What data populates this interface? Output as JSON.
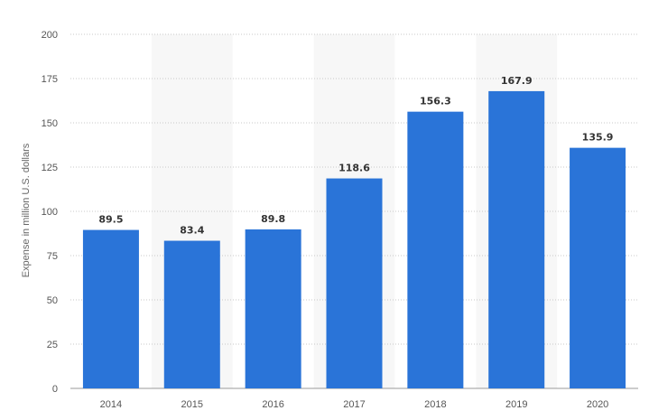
{
  "chart_data": {
    "type": "bar",
    "categories": [
      "2014",
      "2015",
      "2016",
      "2017",
      "2018",
      "2019",
      "2020"
    ],
    "values": [
      89.5,
      83.4,
      89.8,
      118.6,
      156.3,
      167.9,
      135.9
    ],
    "data_labels": [
      "89.5",
      "83.4",
      "89.8",
      "118.6",
      "156.3",
      "167.9",
      "135.9"
    ],
    "title": "",
    "xlabel": "",
    "ylabel": "Expense in million U.S. dollars",
    "ylim": [
      0,
      200
    ],
    "yticks": [
      0,
      25,
      50,
      75,
      100,
      125,
      150,
      175,
      200
    ],
    "ytick_labels": [
      "0",
      "25",
      "50",
      "75",
      "100",
      "125",
      "150",
      "175",
      "200"
    ],
    "grid": true,
    "legend": "none",
    "bar_color": "#2a74d8"
  }
}
